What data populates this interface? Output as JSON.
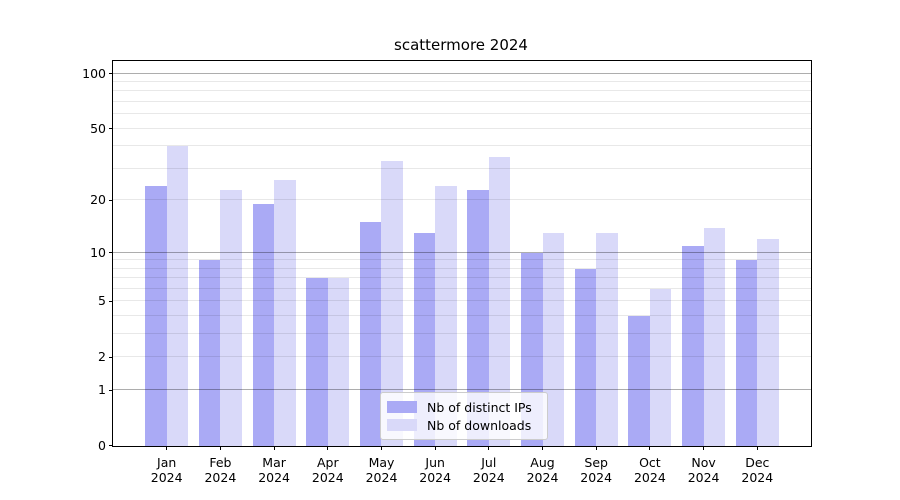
{
  "chart_data": {
    "type": "bar",
    "title": "scattermore 2024",
    "x_tick_labels": [
      [
        "Jan",
        "2024"
      ],
      [
        "Feb",
        "2024"
      ],
      [
        "Mar",
        "2024"
      ],
      [
        "Apr",
        "2024"
      ],
      [
        "May",
        "2024"
      ],
      [
        "Jun",
        "2024"
      ],
      [
        "Jul",
        "2024"
      ],
      [
        "Aug",
        "2024"
      ],
      [
        "Sep",
        "2024"
      ],
      [
        "Oct",
        "2024"
      ],
      [
        "Nov",
        "2024"
      ],
      [
        "Dec",
        "2024"
      ]
    ],
    "categories": [
      "Jan 2024",
      "Feb 2024",
      "Mar 2024",
      "Apr 2024",
      "May 2024",
      "Jun 2024",
      "Jul 2024",
      "Aug 2024",
      "Sep 2024",
      "Oct 2024",
      "Nov 2024",
      "Dec 2024"
    ],
    "series": [
      {
        "name": "Nb of distinct IPs",
        "color": "#aaaaf5",
        "values": [
          24,
          9,
          19,
          7,
          15,
          13,
          23,
          10,
          8,
          4,
          11,
          9
        ]
      },
      {
        "name": "Nb of downloads",
        "color": "#d9d9f9",
        "values": [
          40,
          23,
          26,
          7,
          33,
          24,
          35,
          13,
          13,
          6,
          14,
          12
        ]
      }
    ],
    "y_scale": "log1p",
    "y_ticks": [
      0,
      1,
      2,
      5,
      10,
      20,
      50,
      100
    ],
    "y_major_gridlines": [
      1,
      10,
      100
    ],
    "y_minor_gridlines": [
      2,
      3,
      4,
      5,
      6,
      7,
      8,
      9,
      20,
      30,
      40,
      50,
      60,
      70,
      80,
      90
    ],
    "ylim": [
      0,
      117
    ],
    "grid": true,
    "legend_position": "lower center",
    "axis_color": "#000000",
    "background_color": "#ffffff"
  }
}
